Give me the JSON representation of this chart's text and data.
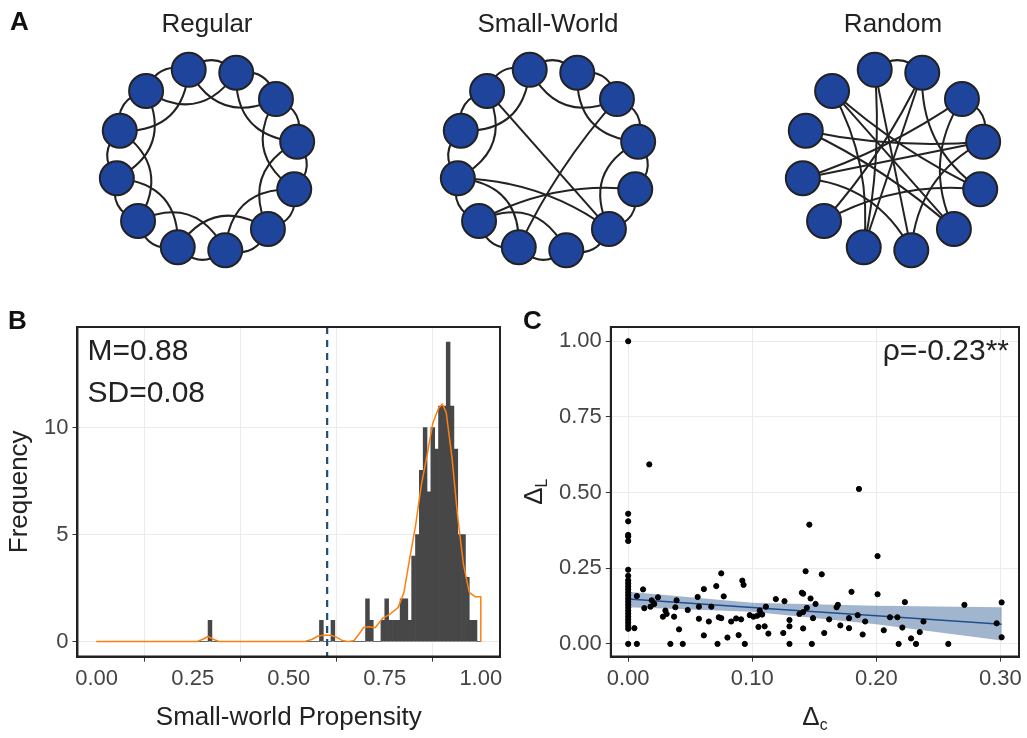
{
  "chart_data": [
    {
      "type": "other",
      "title": "A",
      "annotations": [
        "Regular",
        "Small-World",
        "Random"
      ]
    },
    {
      "type": "histogram",
      "title": "B",
      "xlabel": "Small-world Propensity",
      "ylabel": "Frequency",
      "bins": [
        0,
        0.01,
        0.02,
        0.03,
        0.04,
        0.05,
        0.06,
        0.07,
        0.08,
        0.09,
        0.1,
        0.11,
        0.12,
        0.13,
        0.14,
        0.15,
        0.16,
        0.17,
        0.18,
        0.19,
        0.2,
        0.21,
        0.22,
        0.23,
        0.24,
        0.25,
        0.26,
        0.27,
        0.28,
        0.29,
        0.3,
        0.31,
        0.32,
        0.33,
        0.34,
        0.35,
        0.36,
        0.37,
        0.38,
        0.39,
        0.4,
        0.41,
        0.42,
        0.43,
        0.44,
        0.45,
        0.46,
        0.47,
        0.48,
        0.49,
        0.5,
        0.51,
        0.52,
        0.53,
        0.54,
        0.55,
        0.56,
        0.57,
        0.58,
        0.59,
        0.6,
        0.61,
        0.62,
        0.63,
        0.64,
        0.65,
        0.66,
        0.67,
        0.68,
        0.69,
        0.7,
        0.71,
        0.72,
        0.73,
        0.74,
        0.75,
        0.76,
        0.77,
        0.78,
        0.79,
        0.8,
        0.81,
        0.82,
        0.83,
        0.84,
        0.85,
        0.86,
        0.87,
        0.88,
        0.89,
        0.9,
        0.91,
        0.92,
        0.93,
        0.94,
        0.95,
        0.96,
        0.97,
        0.98,
        0.99,
        1
      ],
      "series": [
        {
          "type": "histogram",
          "color": "#474747",
          "values": [
            0,
            0,
            0,
            0,
            0,
            0,
            0,
            0,
            0,
            0,
            0,
            0,
            0,
            0,
            0,
            0,
            0,
            0,
            0,
            0,
            0,
            0,
            0,
            0,
            0,
            0,
            0,
            0,
            0,
            1,
            0,
            0,
            0,
            0,
            0,
            0,
            0,
            0,
            0,
            0,
            0,
            0,
            0,
            0,
            0,
            0,
            0,
            0,
            0,
            0,
            0,
            0,
            0,
            0,
            0,
            0,
            0,
            0,
            1,
            0,
            0,
            1,
            0,
            0,
            0,
            0,
            0,
            0,
            0,
            0,
            2,
            1,
            0,
            0,
            1,
            2,
            1,
            1,
            1,
            2,
            2,
            1,
            4,
            5,
            8,
            10,
            7,
            10,
            9,
            11,
            11,
            14,
            11,
            9,
            5,
            5,
            3,
            1,
            1,
            0
          ]
        },
        {
          "type": "line",
          "color": "#ff7f0e",
          "x": [
            0,
            0.26,
            0.275,
            0.29,
            0.305,
            0.32,
            0.54,
            0.56,
            0.575,
            0.59,
            0.61,
            0.625,
            0.64,
            0.655,
            0.67,
            0.685,
            0.695,
            0.71,
            0.725,
            0.745,
            0.765,
            0.785,
            0.8,
            0.815,
            0.83,
            0.845,
            0.86,
            0.875,
            0.89,
            0.9,
            0.91,
            0.925,
            0.94,
            0.955,
            0.97,
            0.985,
            1.0,
            1.0
          ],
          "values": [
            0,
            0,
            0.1,
            0.24,
            0.1,
            0,
            0,
            0.1,
            0.25,
            0.3,
            0.3,
            0.2,
            0.05,
            0,
            0.05,
            0.4,
            0.66,
            0.69,
            0.65,
            1.1,
            1.3,
            1.6,
            2.3,
            3.9,
            5.4,
            7.3,
            8.7,
            10.2,
            10.9,
            11.1,
            10.7,
            8.6,
            5.8,
            3.6,
            2.3,
            2.1,
            2.1,
            0
          ]
        }
      ],
      "xlim": [
        -0.05,
        1.05
      ],
      "xticks": [
        {
          "value": 0,
          "label": "0.00"
        },
        {
          "value": 0.25,
          "label": "0.25"
        },
        {
          "value": 0.5,
          "label": "0.50"
        },
        {
          "value": 0.75,
          "label": "0.75"
        },
        {
          "value": 1,
          "label": "1.00"
        }
      ],
      "ylim": [
        -0.7,
        14.7
      ],
      "yticks": [
        0,
        5,
        10
      ],
      "ref_lines": [
        {
          "axis": "x",
          "value": 0.6,
          "color": "#1f4e79",
          "line_style": "dashed"
        }
      ],
      "annotations": [
        "M=0.88",
        "SD=0.08"
      ],
      "grid": true
    },
    {
      "type": "scatter",
      "title": "C",
      "xlabel": "Δ$_{c}$",
      "ylabel": "Δ$_{L}$",
      "series": [
        {
          "type": "scatter",
          "color": "#000000",
          "marker": "circle",
          "x": [
            0,
            0,
            0,
            0,
            0,
            0,
            0,
            0,
            0,
            0,
            0,
            0,
            0,
            0,
            0,
            0,
            0,
            0,
            0,
            0,
            0,
            0,
            0,
            0,
            0,
            0,
            0.005,
            0.007,
            0.007,
            0.012,
            0.013,
            0.017,
            0.018,
            0.019,
            0.021,
            0.024,
            0.028,
            0.03,
            0.031,
            0.034,
            0.037,
            0.038,
            0.039,
            0.041,
            0.044,
            0.048,
            0.056,
            0.057,
            0.057,
            0.061,
            0.061,
            0.065,
            0.067,
            0.071,
            0.072,
            0.073,
            0.075,
            0.075,
            0.077,
            0.08,
            0.083,
            0.087,
            0.089,
            0.091,
            0.092,
            0.093,
            0.094,
            0.098,
            0.101,
            0.104,
            0.105,
            0.106,
            0.107,
            0.108,
            0.11,
            0.111,
            0.113,
            0.119,
            0.125,
            0.126,
            0.13,
            0.13,
            0.13,
            0.138,
            0.14,
            0.141,
            0.141,
            0.141,
            0.143,
            0.144,
            0.146,
            0.147,
            0.148,
            0.149,
            0.151,
            0.156,
            0.158,
            0.162,
            0.168,
            0.169,
            0.171,
            0.178,
            0.178,
            0.18,
            0.185,
            0.186,
            0.189,
            0.191,
            0.201,
            0.201,
            0.206,
            0.211,
            0.217,
            0.218,
            0.221,
            0.223,
            0.228,
            0.232,
            0.235,
            0.238,
            0.258,
            0.271,
            0.297,
            0.301,
            0.301
          ],
          "values": [
            1.0,
            0.43,
            0.405,
            0.36,
            0.355,
            0.34,
            0.245,
            0.225,
            0.21,
            0.2,
            0.19,
            0.18,
            0.17,
            0.16,
            0.15,
            0.14,
            0.13,
            0.12,
            0.11,
            0.1,
            0.09,
            0.08,
            0.07,
            0.06,
            0.05,
            0,
            0.052,
            0,
            0.158,
            0.18,
            0.118,
            0.593,
            0.123,
            0.144,
            0.132,
            0.154,
            0.09,
            0.11,
            0.099,
            0,
            0.09,
            0.121,
            0.144,
            0.048,
            0,
            0.112,
            0.155,
            0.123,
            0.083,
            0.181,
            0.028,
            0.074,
            0.123,
            0.191,
            0,
            0.088,
            0.233,
            0.085,
            0.157,
            0.021,
            0.074,
            0.084,
            0.029,
            0.081,
            0.209,
            0.195,
            0,
            0.095,
            0.09,
            0.093,
            0.056,
            0.11,
            0.099,
            0.097,
            0.058,
            0.123,
            0.034,
            0.148,
            0.036,
            0.141,
            0.079,
            0.058,
            0,
            0.099,
            0.169,
            0.051,
            0.166,
            0.105,
            0.24,
            0.119,
            0.394,
            0.15,
            0,
            0.085,
            0.132,
            0.23,
            0.036,
            0.081,
            0.121,
            0.129,
            0.061,
            0.085,
            0.052,
            0.172,
            0.095,
            0.512,
            0.031,
            0.074,
            0.29,
            0.164,
            0.045,
            0.088,
            0.088,
            0,
            0.054,
            0.138,
            0.018,
            0,
            0.039,
            0.074,
            0,
            0.129,
            0.068,
            0.137,
            0.022
          ]
        },
        {
          "type": "line",
          "color": "#1f4e8c",
          "x": [
            0,
            0.1,
            0.2,
            0.301
          ],
          "values": [
            0.148,
            0.12,
            0.093,
            0.065
          ],
          "lower": [
            0.121,
            0.106,
            0.065,
            0.011
          ],
          "upper": [
            0.172,
            0.136,
            0.126,
            0.121
          ]
        }
      ],
      "xlim": [
        -0.014,
        0.315
      ],
      "xticks": [
        {
          "value": 0,
          "label": "0.00"
        },
        {
          "value": 0.1,
          "label": "0.10"
        },
        {
          "value": 0.2,
          "label": "0.20"
        },
        {
          "value": 0.3,
          "label": "0.30"
        }
      ],
      "ylim": [
        -0.042,
        1.047
      ],
      "yticks": [
        {
          "value": 0,
          "label": "0.00"
        },
        {
          "value": 0.25,
          "label": "0.25"
        },
        {
          "value": 0.5,
          "label": "0.50"
        },
        {
          "value": 0.75,
          "label": "0.75"
        },
        {
          "value": 1,
          "label": "1.00"
        }
      ],
      "annotations": [
        "ρ=-0.23**"
      ],
      "grid": true
    }
  ]
}
